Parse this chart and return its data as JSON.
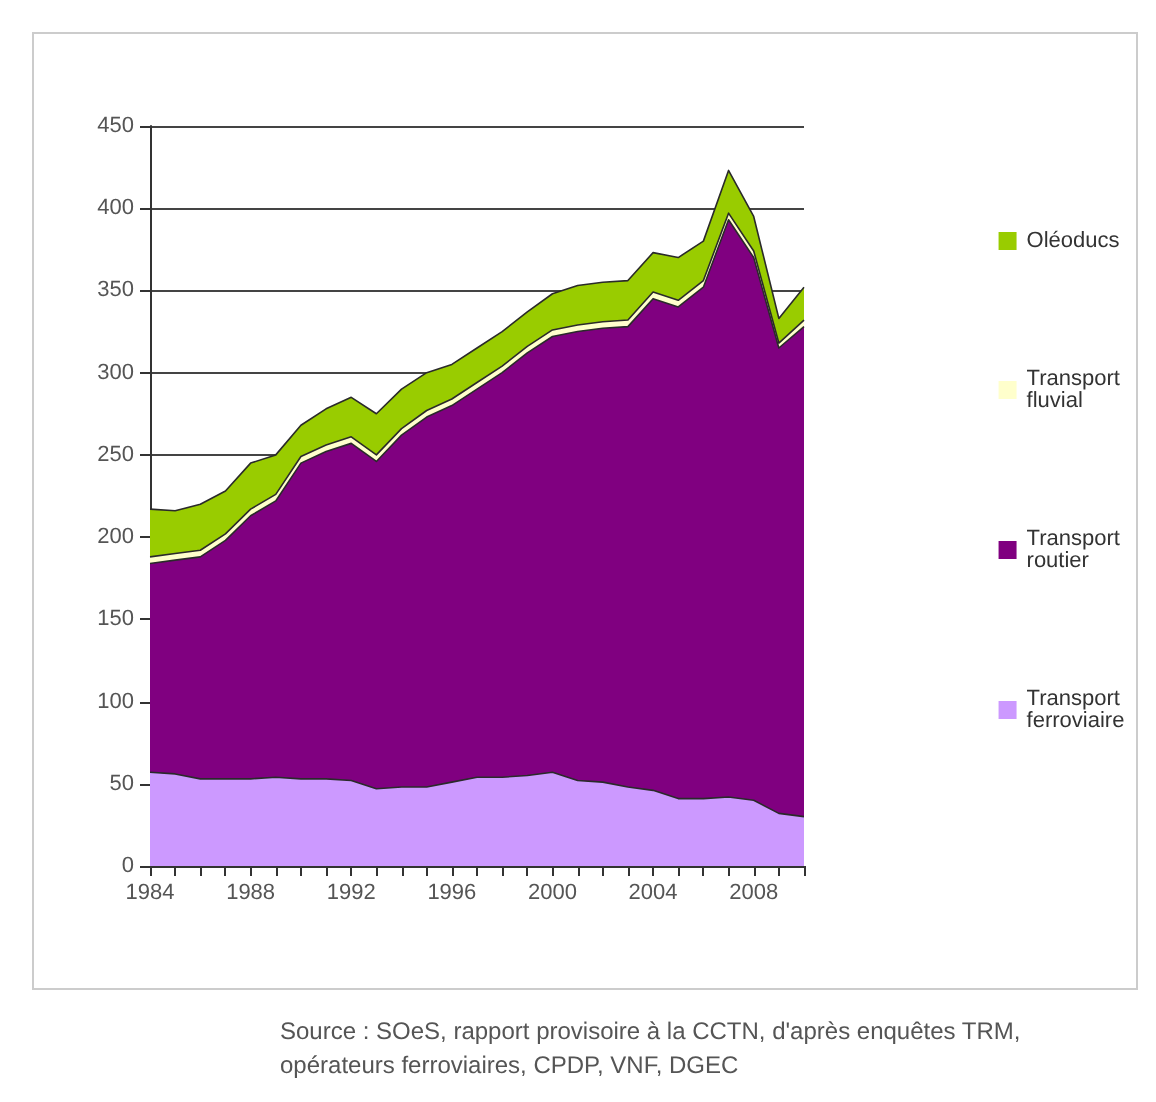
{
  "chart_data": {
    "type": "area",
    "stacked": true,
    "x": [
      1984,
      1985,
      1986,
      1987,
      1988,
      1989,
      1990,
      1991,
      1992,
      1993,
      1994,
      1995,
      1996,
      1997,
      1998,
      1999,
      2000,
      2001,
      2002,
      2003,
      2004,
      2005,
      2006,
      2007,
      2008,
      2009,
      2010
    ],
    "xlim": [
      1984,
      2010
    ],
    "xticks": [
      1984,
      {
        "value": 1985,
        "label": null
      },
      {
        "value": 1986,
        "label": null
      },
      {
        "value": 1987,
        "label": null
      },
      1988,
      {
        "value": 1989,
        "label": null
      },
      {
        "value": 1990,
        "label": null
      },
      {
        "value": 1991,
        "label": null
      },
      1992,
      {
        "value": 1993,
        "label": null
      },
      {
        "value": 1994,
        "label": null
      },
      {
        "value": 1995,
        "label": null
      },
      1996,
      {
        "value": 1997,
        "label": null
      },
      {
        "value": 1998,
        "label": null
      },
      {
        "value": 1999,
        "label": null
      },
      2000,
      {
        "value": 2001,
        "label": null
      },
      {
        "value": 2002,
        "label": null
      },
      {
        "value": 2003,
        "label": null
      },
      2004,
      {
        "value": 2005,
        "label": null
      },
      {
        "value": 2006,
        "label": null
      },
      {
        "value": 2007,
        "label": null
      },
      2008,
      {
        "value": 2009,
        "label": null
      },
      {
        "value": 2010,
        "label": null
      }
    ],
    "ylim": [
      0,
      450
    ],
    "yticks": [
      0,
      50,
      100,
      150,
      200,
      250,
      300,
      350,
      400,
      450
    ],
    "grid": "y",
    "legend": "right",
    "series": [
      {
        "name": "Transport ferroviaire",
        "color": "#cc99ff",
        "values": [
          57,
          56,
          53,
          53,
          53,
          54,
          53,
          53,
          52,
          47,
          48,
          48,
          51,
          54,
          54,
          55,
          57,
          52,
          51,
          48,
          46,
          41,
          41,
          42,
          40,
          32,
          30
        ]
      },
      {
        "name": "Transport routier",
        "color": "#800080",
        "values": [
          127,
          130,
          135,
          145,
          160,
          168,
          192,
          199,
          205,
          199,
          214,
          225,
          229,
          236,
          246,
          257,
          265,
          273,
          276,
          280,
          299,
          299,
          311,
          351,
          330,
          283,
          298
        ]
      },
      {
        "name": "Transport fluvial",
        "color": "#ffffcc",
        "values": [
          4,
          4,
          4,
          4,
          4,
          4,
          4,
          4,
          4,
          4,
          4,
          4,
          4,
          4,
          4,
          4,
          4,
          4,
          4,
          4,
          4,
          4,
          4,
          4,
          4,
          3,
          4
        ]
      },
      {
        "name": "Oléoducs",
        "color": "#99cc00",
        "values": [
          29,
          26,
          28,
          26,
          28,
          24,
          19,
          22,
          24,
          25,
          24,
          23,
          21,
          21,
          21,
          21,
          22,
          24,
          24,
          24,
          24,
          26,
          24,
          26,
          21,
          15,
          20
        ]
      }
    ],
    "annotations": [
      "Source : SOeS, rapport provisoire à la CCTN, d'après enquêtes TRM, opérateurs ferroviaires, CPDP, VNF, DGEC"
    ]
  }
}
